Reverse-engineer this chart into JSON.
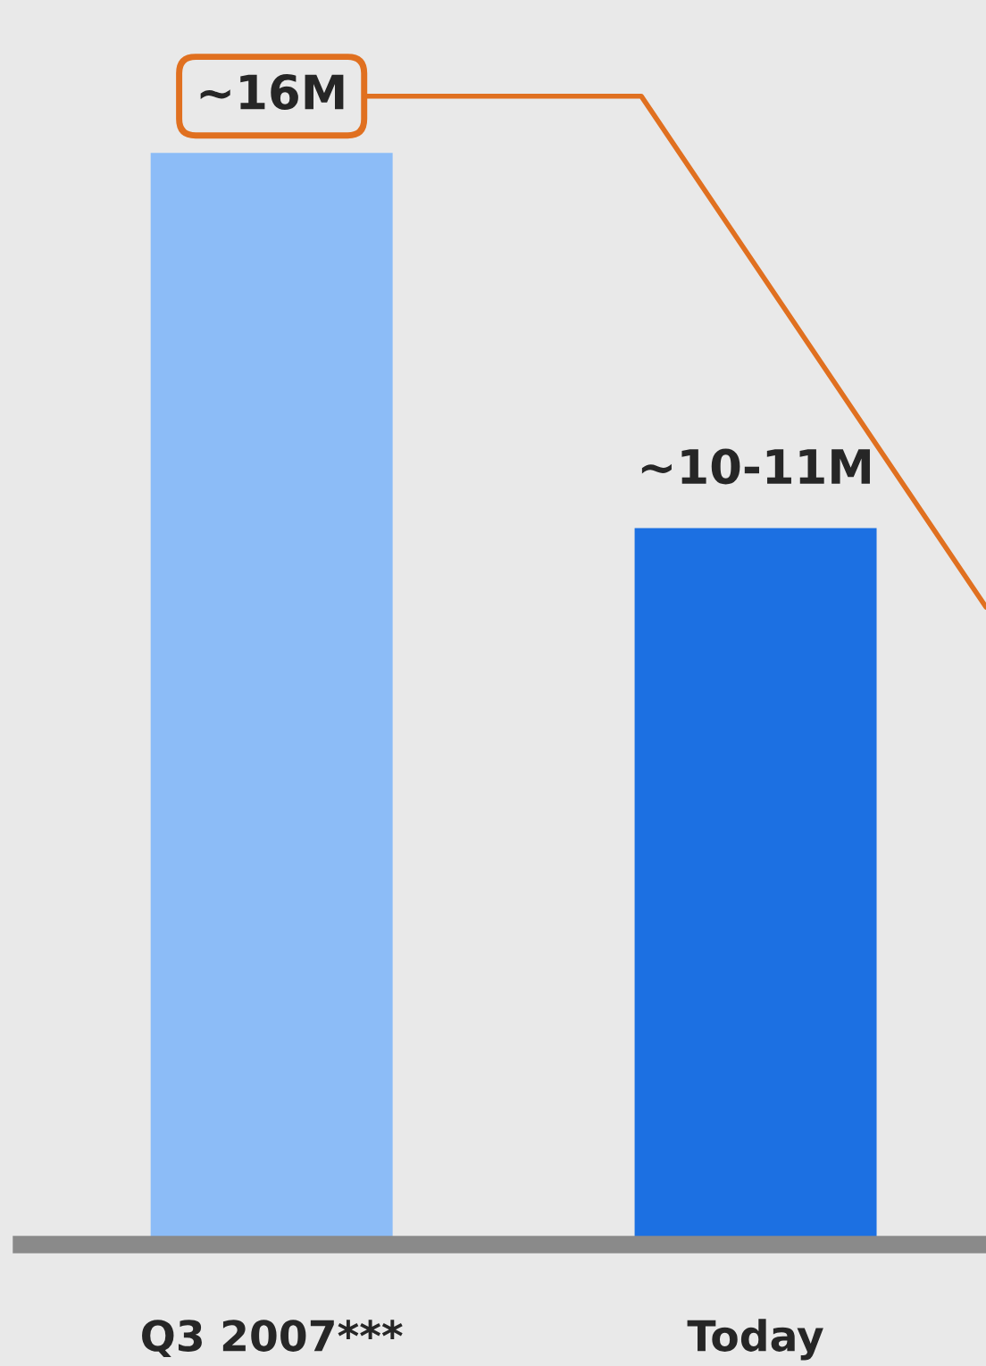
{
  "chart_data": {
    "type": "bar",
    "categories": [
      "Q3 2007***",
      "Today"
    ],
    "values": [
      16,
      10.5
    ],
    "value_labels": [
      "~16M",
      "~10-11M"
    ],
    "colors": [
      "#8cbcf7",
      "#1c70e2"
    ]
  }
}
